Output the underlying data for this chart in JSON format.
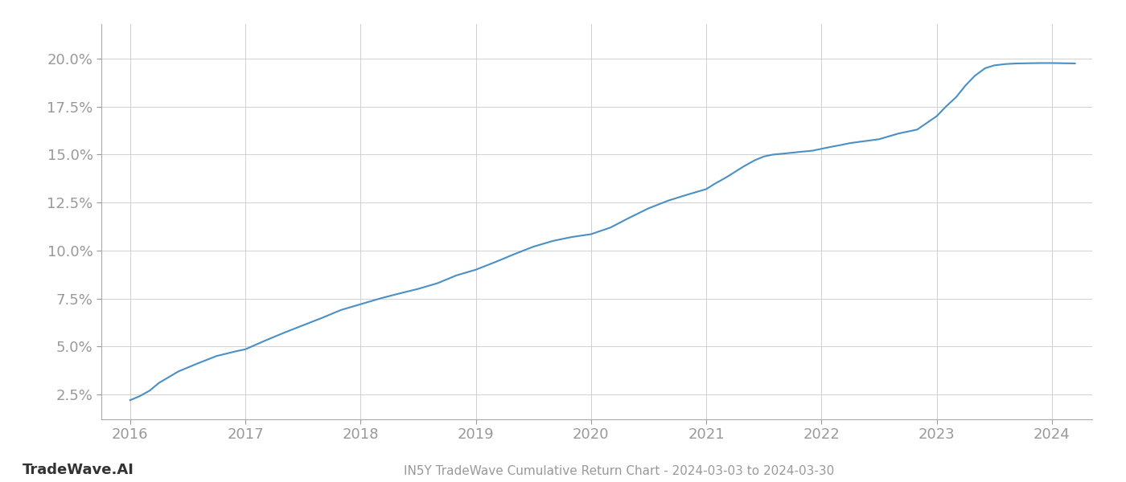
{
  "title": "IN5Y TradeWave Cumulative Return Chart - 2024-03-03 to 2024-03-30",
  "watermark": "TradeWave.AI",
  "line_color": "#4a90c4",
  "line_width": 1.5,
  "background_color": "#ffffff",
  "grid_color": "#cccccc",
  "x_values": [
    2016.0,
    2016.08,
    2016.17,
    2016.25,
    2016.42,
    2016.58,
    2016.75,
    2016.92,
    2017.0,
    2017.17,
    2017.33,
    2017.5,
    2017.67,
    2017.83,
    2018.0,
    2018.17,
    2018.33,
    2018.5,
    2018.67,
    2018.83,
    2019.0,
    2019.17,
    2019.33,
    2019.5,
    2019.67,
    2019.83,
    2020.0,
    2020.17,
    2020.33,
    2020.5,
    2020.67,
    2020.83,
    2021.0,
    2021.08,
    2021.17,
    2021.25,
    2021.33,
    2021.42,
    2021.5,
    2021.58,
    2021.67,
    2021.75,
    2021.83,
    2021.92,
    2022.0,
    2022.08,
    2022.17,
    2022.25,
    2022.5,
    2022.67,
    2022.83,
    2023.0,
    2023.08,
    2023.17,
    2023.25,
    2023.33,
    2023.42,
    2023.5,
    2023.6,
    2023.7,
    2023.8,
    2023.9,
    2024.0,
    2024.2
  ],
  "y_values": [
    2.2,
    2.4,
    2.7,
    3.1,
    3.7,
    4.1,
    4.5,
    4.75,
    4.85,
    5.3,
    5.7,
    6.1,
    6.5,
    6.9,
    7.2,
    7.5,
    7.75,
    8.0,
    8.3,
    8.7,
    9.0,
    9.4,
    9.8,
    10.2,
    10.5,
    10.7,
    10.85,
    11.2,
    11.7,
    12.2,
    12.6,
    12.9,
    13.2,
    13.5,
    13.8,
    14.1,
    14.4,
    14.7,
    14.9,
    15.0,
    15.05,
    15.1,
    15.15,
    15.2,
    15.3,
    15.4,
    15.5,
    15.6,
    15.8,
    16.1,
    16.3,
    17.0,
    17.5,
    18.0,
    18.6,
    19.1,
    19.5,
    19.65,
    19.72,
    19.75,
    19.76,
    19.77,
    19.77,
    19.75
  ],
  "xlim": [
    2015.75,
    2024.35
  ],
  "ylim": [
    1.2,
    21.8
  ],
  "yticks": [
    2.5,
    5.0,
    7.5,
    10.0,
    12.5,
    15.0,
    17.5,
    20.0
  ],
  "xticks": [
    2016,
    2017,
    2018,
    2019,
    2020,
    2021,
    2022,
    2023,
    2024
  ],
  "tick_label_color": "#999999",
  "tick_fontsize": 13,
  "title_fontsize": 11,
  "watermark_fontsize": 13,
  "spine_color": "#aaaaaa"
}
